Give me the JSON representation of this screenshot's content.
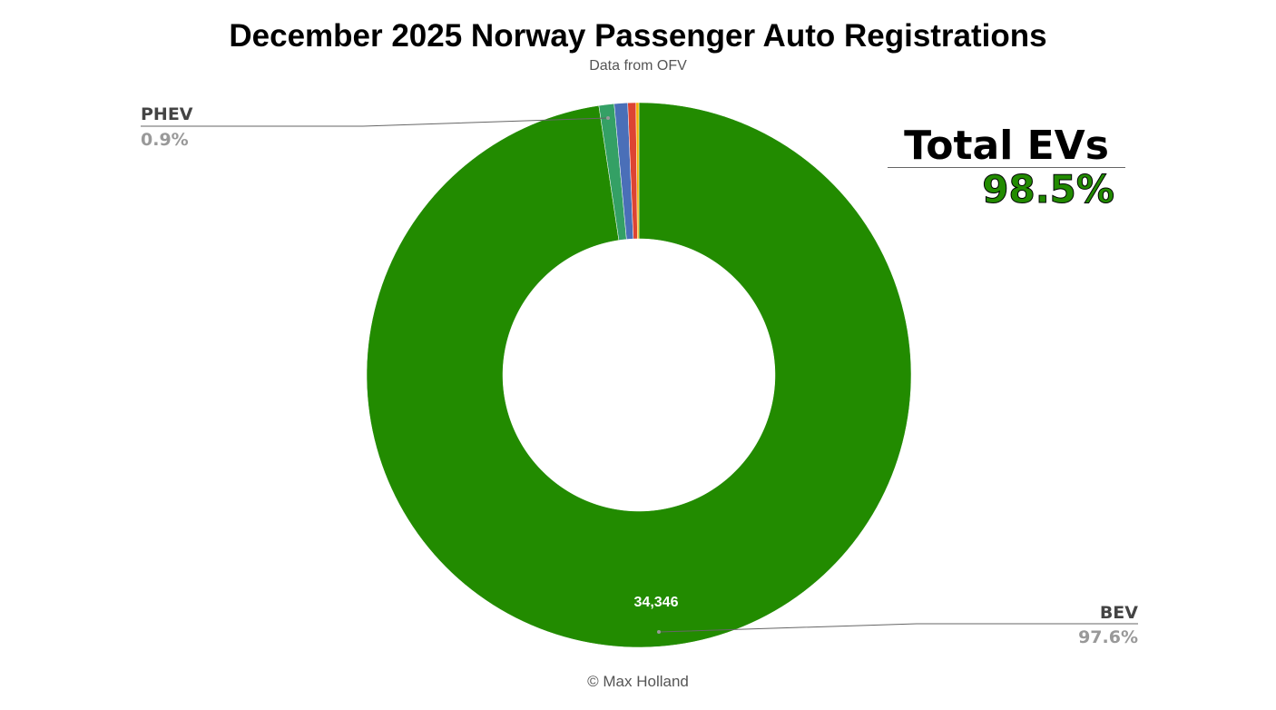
{
  "chart_data": {
    "type": "pie",
    "donut": true,
    "title": "December 2025 Norway Passenger Auto Registrations",
    "subtitle": "Data from OFV",
    "footer": "© Max Holland",
    "series": [
      {
        "name": "BEV",
        "value": 34346,
        "percent_label": "97.6%",
        "value_label": "34,346",
        "color": "#228b00"
      },
      {
        "name": "PHEV",
        "value": 317,
        "percent_label": "0.9%",
        "color": "#34a065"
      },
      {
        "value": 280,
        "color": "#4a6fb8"
      },
      {
        "value": 170,
        "color": "#dd4433"
      },
      {
        "value": 60,
        "color": "#f5b400"
      }
    ],
    "annotation": {
      "label": "Total EVs",
      "value": "98.5%",
      "color": "#228b00"
    }
  }
}
